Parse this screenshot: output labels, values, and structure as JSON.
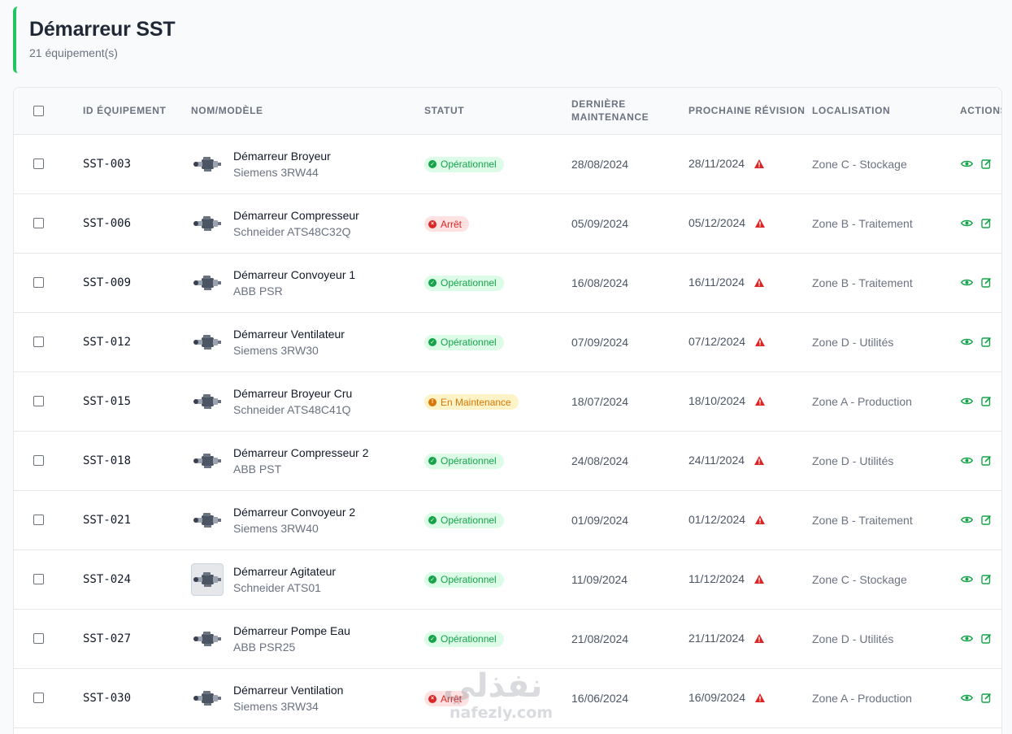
{
  "page": {
    "title": "Démarreur SST",
    "subtitle": "21 équipement(s)",
    "accent_color": "#22c55e"
  },
  "table": {
    "columns": {
      "id": "ID ÉQUIPEMENT",
      "name": "NOM/MODÈLE",
      "status": "STATUT",
      "last_maintenance": "DERNIÈRE MAINTENANCE",
      "next_revision": "PROCHAINE RÉVISION",
      "location": "LOCALISATION",
      "actions": "ACTIONS"
    },
    "rows": [
      {
        "id": "SST-003",
        "name": "Démarreur Broyeur",
        "model": "Siemens 3RW44",
        "status": "Opérationnel",
        "status_kind": "ok",
        "last": "28/08/2024",
        "next": "28/11/2024",
        "location": "Zone C - Stockage",
        "thumb": "starter-motor-icon"
      },
      {
        "id": "SST-006",
        "name": "Démarreur Compresseur",
        "model": "Schneider ATS48C32Q",
        "status": "Arrêt",
        "status_kind": "stop",
        "last": "05/09/2024",
        "next": "05/12/2024",
        "location": "Zone B - Traitement",
        "thumb": "starter-motor-icon"
      },
      {
        "id": "SST-009",
        "name": "Démarreur Convoyeur 1",
        "model": "ABB PSR",
        "status": "Opérationnel",
        "status_kind": "ok",
        "last": "16/08/2024",
        "next": "16/11/2024",
        "location": "Zone B - Traitement",
        "thumb": "starter-motor-icon"
      },
      {
        "id": "SST-012",
        "name": "Démarreur Ventilateur",
        "model": "Siemens 3RW30",
        "status": "Opérationnel",
        "status_kind": "ok",
        "last": "07/09/2024",
        "next": "07/12/2024",
        "location": "Zone D - Utilités",
        "thumb": "starter-motor-icon"
      },
      {
        "id": "SST-015",
        "name": "Démarreur Broyeur Cru",
        "model": "Schneider ATS48C41Q",
        "status": "En Maintenance",
        "status_kind": "maint",
        "last": "18/07/2024",
        "next": "18/10/2024",
        "location": "Zone A - Production",
        "thumb": "starter-motor-icon"
      },
      {
        "id": "SST-018",
        "name": "Démarreur Compresseur 2",
        "model": "ABB PST",
        "status": "Opérationnel",
        "status_kind": "ok",
        "last": "24/08/2024",
        "next": "24/11/2024",
        "location": "Zone D - Utilités",
        "thumb": "starter-motor-icon"
      },
      {
        "id": "SST-021",
        "name": "Démarreur Convoyeur 2",
        "model": "Siemens 3RW40",
        "status": "Opérationnel",
        "status_kind": "ok",
        "last": "01/09/2024",
        "next": "01/12/2024",
        "location": "Zone B - Traitement",
        "thumb": "starter-motor-icon"
      },
      {
        "id": "SST-024",
        "name": "Démarreur Agitateur",
        "model": "Schneider ATS01",
        "status": "Opérationnel",
        "status_kind": "ok",
        "last": "11/09/2024",
        "next": "11/12/2024",
        "location": "Zone C - Stockage",
        "thumb": "starter-motor-photo"
      },
      {
        "id": "SST-027",
        "name": "Démarreur Pompe Eau",
        "model": "ABB PSR25",
        "status": "Opérationnel",
        "status_kind": "ok",
        "last": "21/08/2024",
        "next": "21/11/2024",
        "location": "Zone D - Utilités",
        "thumb": "starter-motor-icon"
      },
      {
        "id": "SST-030",
        "name": "Démarreur Ventilation",
        "model": "Siemens 3RW34",
        "status": "Arrêt",
        "status_kind": "stop",
        "last": "16/06/2024",
        "next": "16/09/2024",
        "location": "Zone A - Production",
        "thumb": "starter-motor-icon"
      }
    ]
  },
  "watermark": {
    "arabic": "نفذلي",
    "latin": "nafezly.com"
  }
}
